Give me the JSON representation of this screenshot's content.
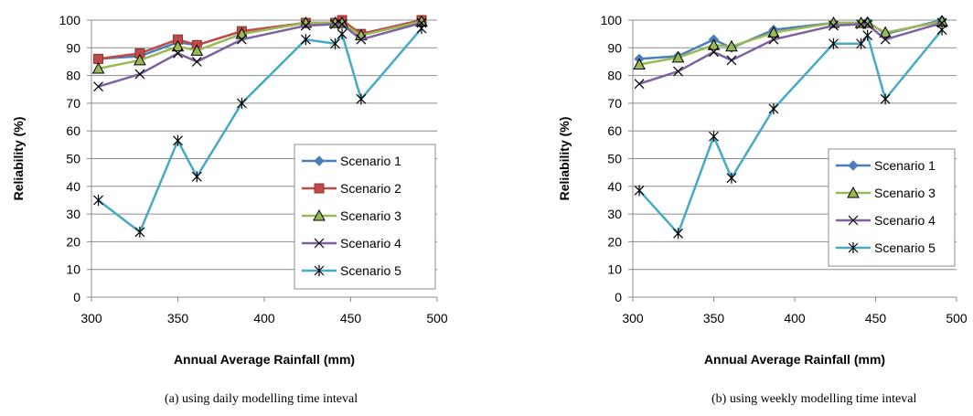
{
  "chart_data": [
    {
      "type": "line",
      "xlabel": "Annual Average Rainfall (mm)",
      "ylabel": "Reliability (%)",
      "xlim": [
        300,
        500
      ],
      "ylim": [
        0,
        100
      ],
      "xticks": [
        300,
        350,
        400,
        450,
        500
      ],
      "yticks": [
        0,
        10,
        20,
        30,
        40,
        50,
        60,
        70,
        80,
        90,
        100
      ],
      "grid": "horizontal major gridlines",
      "legend_position": "bottom-right",
      "caption": "(a) using daily modelling time inteval",
      "x": [
        304,
        328,
        350,
        361,
        387,
        424,
        441,
        445,
        456,
        491
      ],
      "series": [
        {
          "name": "Scenario 1",
          "color": "#4a7ebb",
          "marker": "diamond",
          "values": [
            86,
            87,
            92,
            91,
            96,
            99,
            99,
            99,
            95,
            100
          ]
        },
        {
          "name": "Scenario 2",
          "color": "#be4b48",
          "marker": "square",
          "values": [
            86,
            88,
            93,
            91,
            96,
            99,
            99,
            100,
            95,
            100
          ]
        },
        {
          "name": "Scenario 3",
          "color": "#98b954",
          "marker": "triangle",
          "values": [
            82.5,
            85.5,
            90.5,
            89,
            95,
            99,
            99,
            99,
            94.5,
            99.5
          ]
        },
        {
          "name": "Scenario 4",
          "color": "#7d60a0",
          "marker": "x",
          "values": [
            76,
            80.5,
            88,
            85,
            93,
            98,
            98.5,
            98.5,
            93,
            99
          ]
        },
        {
          "name": "Scenario 5",
          "color": "#46aac5",
          "marker": "star",
          "values": [
            35,
            23.5,
            56.5,
            43.5,
            70,
            93,
            91.5,
            95,
            71.5,
            97
          ]
        }
      ]
    },
    {
      "type": "line",
      "xlabel": "Annual Average Rainfall (mm)",
      "ylabel": "Reliability (%)",
      "xlim": [
        300,
        500
      ],
      "ylim": [
        0,
        100
      ],
      "xticks": [
        300,
        350,
        400,
        450,
        500
      ],
      "yticks": [
        0,
        10,
        20,
        30,
        40,
        50,
        60,
        70,
        80,
        90,
        100
      ],
      "grid": "horizontal major gridlines",
      "legend_position": "bottom-right",
      "caption": "(b) using weekly modelling time inteval",
      "x": [
        304,
        328,
        350,
        361,
        387,
        424,
        441,
        445,
        456,
        491
      ],
      "series": [
        {
          "name": "Scenario 1",
          "color": "#4a7ebb",
          "marker": "diamond",
          "values": [
            86,
            87,
            93,
            90,
            96.5,
            99,
            99,
            99.5,
            95,
            100
          ]
        },
        {
          "name": "Scenario 3",
          "color": "#98b954",
          "marker": "triangle",
          "values": [
            84,
            86.5,
            91,
            90.5,
            95.5,
            99,
            99,
            99,
            95.5,
            99.5
          ]
        },
        {
          "name": "Scenario 4",
          "color": "#7d60a0",
          "marker": "x",
          "values": [
            77,
            81.5,
            88.5,
            85.5,
            93,
            98,
            98.5,
            98.5,
            93,
            99
          ]
        },
        {
          "name": "Scenario 5",
          "color": "#46aac5",
          "marker": "star",
          "values": [
            38.5,
            23,
            58,
            43,
            68,
            91.5,
            91.5,
            94.5,
            71.5,
            96.5
          ]
        }
      ]
    }
  ]
}
